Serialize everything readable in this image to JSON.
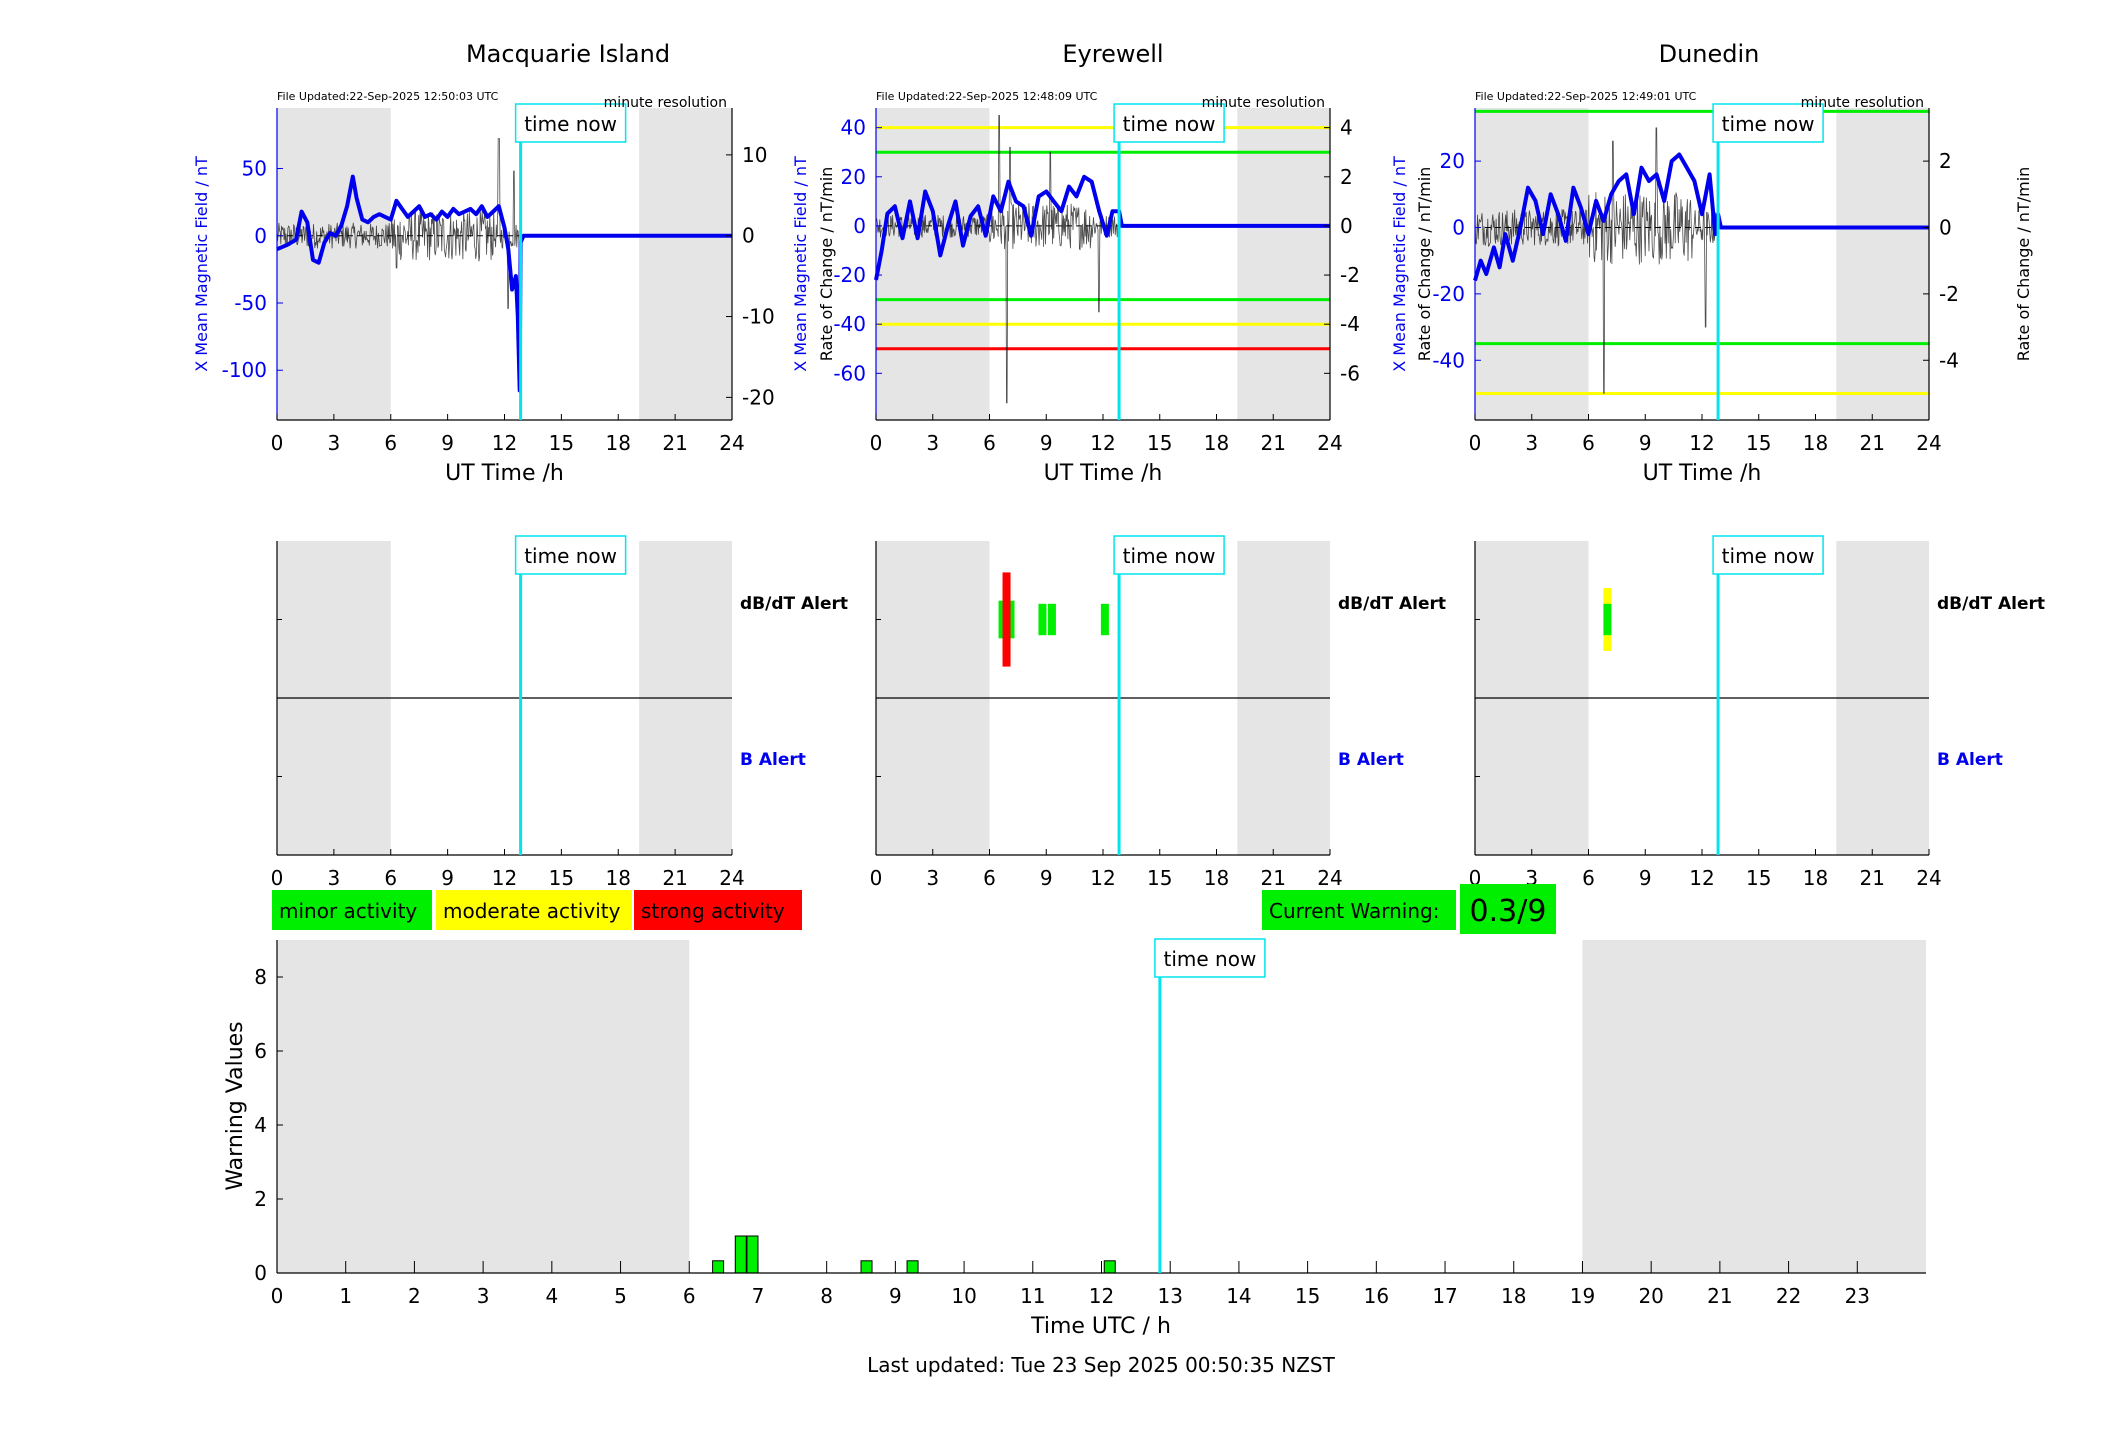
{
  "footer": "Last updated: Tue 23 Sep 2025 00:50:35 NZST",
  "legend": {
    "minor": "minor activity",
    "moderate": "moderate activity",
    "strong": "strong activity"
  },
  "current_warning": {
    "label": "Current Warning:",
    "value": "0.3/9"
  },
  "now_label": "time now",
  "colors": {
    "field": "#0000ee",
    "rate": "#000000",
    "now": "#00e5ee",
    "shade": "#e5e5e5",
    "green": "#00ee00",
    "yellow": "#ffff00",
    "red": "#ff0000"
  },
  "stations": [
    {
      "name": "Macquarie Island",
      "file_updated": "File Updated:22-Sep-2025 12:50:03 UTC",
      "resolution": "minute resolution",
      "ylabel_left": "X Mean Magnetic Field / nT",
      "ylabel_right": "Rate of Change / nT/min",
      "xlabel": "UT Time /h",
      "left_ticks": [
        "-100",
        "-50",
        "0",
        "50"
      ],
      "right_ticks": [
        "-20",
        "-10",
        "0",
        "10"
      ],
      "x_ticks": [
        "0",
        "3",
        "6",
        "9",
        "12",
        "15",
        "18",
        "21",
        "24"
      ],
      "alert_labels": {
        "dbdt": "dB/dT Alert",
        "b": "B Alert"
      }
    },
    {
      "name": "Eyrewell",
      "file_updated": "File Updated:22-Sep-2025 12:48:09 UTC",
      "resolution": "minute resolution",
      "ylabel_left": "X Mean Magnetic Field / nT",
      "ylabel_right": "Rate of Change / nT/min",
      "xlabel": "UT Time /h",
      "left_ticks": [
        "-60",
        "-40",
        "-20",
        "0",
        "20",
        "40"
      ],
      "right_ticks": [
        "-6",
        "-4",
        "-2",
        "0",
        "2",
        "4"
      ],
      "x_ticks": [
        "0",
        "3",
        "6",
        "9",
        "12",
        "15",
        "18",
        "21",
        "24"
      ],
      "alert_labels": {
        "dbdt": "dB/dT Alert",
        "b": "B Alert"
      }
    },
    {
      "name": "Dunedin",
      "file_updated": "File Updated:22-Sep-2025 12:49:01 UTC",
      "resolution": "minute resolution",
      "ylabel_left": "X Mean Magnetic Field / nT",
      "ylabel_right": "Rate of Change / nT/min",
      "xlabel": "UT Time /h",
      "left_ticks": [
        "-40",
        "-20",
        "0",
        "20"
      ],
      "right_ticks": [
        "-4",
        "-2",
        "0",
        "2"
      ],
      "x_ticks": [
        "0",
        "3",
        "6",
        "9",
        "12",
        "15",
        "18",
        "21",
        "24"
      ],
      "alert_labels": {
        "dbdt": "dB/dT Alert",
        "b": "B Alert"
      }
    }
  ],
  "chart_data": [
    {
      "type": "line",
      "title": "Macquarie Island",
      "xlabel": "UT Time /h",
      "ylabel": "X Mean Magnetic Field / nT",
      "ylabel_right": "Rate of Change / nT/min",
      "xlim": [
        0,
        24
      ],
      "ylim": [
        -137,
        95
      ],
      "ylim_right": [
        -22.8,
        15.8
      ],
      "shaded_hours": [
        [
          0,
          6
        ],
        [
          19.1,
          24
        ]
      ],
      "time_now": 12.85,
      "thresholds_field": [],
      "series": [
        {
          "name": "",
          "axis": "left",
          "color": "#0000ee",
          "x": [
            0,
            0.5,
            1,
            1.3,
            1.6,
            1.9,
            2.2,
            2.5,
            2.8,
            3.1,
            3.4,
            3.7,
            4,
            4.2,
            4.5,
            4.8,
            5.1,
            5.4,
            5.7,
            6,
            6.3,
            6.6,
            6.9,
            7.2,
            7.5,
            7.8,
            8.1,
            8.4,
            8.7,
            9,
            9.3,
            9.6,
            9.9,
            10.2,
            10.5,
            10.8,
            11.1,
            11.4,
            11.7,
            12,
            12.2,
            12.4,
            12.6,
            12.7,
            12.8,
            12.85,
            13,
            24
          ],
          "y": [
            -10,
            -7,
            -3,
            18,
            10,
            -18,
            -20,
            -5,
            2,
            0,
            8,
            22,
            44,
            28,
            12,
            10,
            14,
            16,
            14,
            12,
            26,
            20,
            14,
            18,
            22,
            14,
            16,
            12,
            18,
            14,
            20,
            16,
            18,
            20,
            16,
            22,
            14,
            18,
            22,
            6,
            -10,
            -40,
            -30,
            -60,
            -115,
            -5,
            0,
            0
          ]
        },
        {
          "name": "",
          "axis": "right",
          "color": "#000000",
          "noise": true,
          "from": 0,
          "to": 12.85,
          "amp": 2.0,
          "spikes": [
            [
              6.3,
              -4
            ],
            [
              11.7,
              12
            ],
            [
              12.2,
              -9
            ],
            [
              12.5,
              8
            ]
          ]
        }
      ]
    },
    {
      "type": "line",
      "title": "Eyrewell",
      "xlabel": "UT Time /h",
      "ylabel": "X Mean Magnetic Field / nT",
      "ylabel_right": "Rate of Change / nT/min",
      "xlim": [
        0,
        24
      ],
      "ylim": [
        -79,
        48
      ],
      "ylim_right": [
        -7.9,
        4.8
      ],
      "shaded_hours": [
        [
          0,
          6
        ],
        [
          19.1,
          24
        ]
      ],
      "time_now": 12.85,
      "thresholds_field": [
        {
          "value": 40,
          "color": "#ffff00"
        },
        {
          "value": 30,
          "color": "#00ee00"
        },
        {
          "value": -30,
          "color": "#00ee00"
        },
        {
          "value": -40,
          "color": "#ffff00"
        },
        {
          "value": -50,
          "color": "#ff0000"
        }
      ],
      "series": [
        {
          "name": "",
          "axis": "left",
          "color": "#0000ee",
          "x": [
            0,
            0.3,
            0.6,
            1,
            1.4,
            1.8,
            2.2,
            2.6,
            3,
            3.4,
            3.8,
            4.2,
            4.6,
            5,
            5.4,
            5.8,
            6.2,
            6.6,
            7,
            7.4,
            7.8,
            8.2,
            8.6,
            9,
            9.4,
            9.8,
            10.2,
            10.6,
            11,
            11.4,
            11.8,
            12.2,
            12.5,
            12.85,
            13,
            24
          ],
          "y": [
            -22,
            -10,
            5,
            8,
            -5,
            10,
            -5,
            14,
            6,
            -12,
            0,
            10,
            -8,
            4,
            8,
            -4,
            12,
            6,
            18,
            10,
            8,
            -4,
            12,
            14,
            10,
            6,
            16,
            12,
            20,
            18,
            6,
            -4,
            6,
            6,
            0,
            0
          ]
        },
        {
          "name": "",
          "axis": "right",
          "color": "#000000",
          "noise": true,
          "from": 0,
          "to": 12.85,
          "amp": 0.6,
          "spikes": [
            [
              6.5,
              4.5
            ],
            [
              6.9,
              -7.2
            ],
            [
              7.1,
              3.2
            ],
            [
              9.2,
              3.0
            ],
            [
              11.8,
              -3.5
            ]
          ]
        }
      ]
    },
    {
      "type": "line",
      "title": "Dunedin",
      "xlabel": "UT Time /h",
      "ylabel": "X Mean Magnetic Field / nT",
      "ylabel_right": "Rate of Change / nT/min",
      "xlim": [
        0,
        24
      ],
      "ylim": [
        -58,
        36
      ],
      "ylim_right": [
        -5.8,
        3.6
      ],
      "shaded_hours": [
        [
          0,
          6
        ],
        [
          19.1,
          24
        ]
      ],
      "time_now": 12.85,
      "thresholds_field": [
        {
          "value": 35,
          "color": "#00ee00"
        },
        {
          "value": -35,
          "color": "#00ee00"
        },
        {
          "value": -50,
          "color": "#ffff00"
        }
      ],
      "series": [
        {
          "name": "",
          "axis": "left",
          "color": "#0000ee",
          "x": [
            0,
            0.3,
            0.6,
            1,
            1.3,
            1.6,
            2,
            2.4,
            2.8,
            3.2,
            3.6,
            4,
            4.4,
            4.8,
            5.2,
            5.6,
            6,
            6.4,
            6.8,
            7.2,
            7.6,
            8,
            8.4,
            8.8,
            9.2,
            9.6,
            10,
            10.4,
            10.8,
            11.2,
            11.6,
            12,
            12.4,
            12.7,
            12.85,
            13,
            24
          ],
          "y": [
            -16,
            -10,
            -14,
            -6,
            -12,
            -2,
            -10,
            0,
            12,
            8,
            -2,
            10,
            4,
            -4,
            12,
            6,
            -2,
            8,
            2,
            10,
            14,
            16,
            4,
            18,
            14,
            16,
            8,
            20,
            22,
            18,
            14,
            4,
            16,
            -2,
            4,
            0,
            0
          ]
        },
        {
          "name": "",
          "axis": "right",
          "color": "#000000",
          "noise": true,
          "from": 0,
          "to": 12.85,
          "amp": 0.7,
          "spikes": [
            [
              6.8,
              -5.0
            ],
            [
              7.3,
              2.6
            ],
            [
              9.6,
              3.0
            ],
            [
              12.2,
              -3.0
            ]
          ]
        }
      ]
    },
    {
      "type": "bar",
      "title": "",
      "xlabel": "Time UTC / h",
      "ylabel": "Warning Values",
      "xlim": [
        0,
        24
      ],
      "ylim": [
        0,
        9
      ],
      "x_ticks": [
        "0",
        "1",
        "2",
        "3",
        "4",
        "5",
        "6",
        "7",
        "8",
        "9",
        "10",
        "11",
        "12",
        "13",
        "14",
        "15",
        "16",
        "17",
        "18",
        "19",
        "20",
        "21",
        "22",
        "23"
      ],
      "y_ticks": [
        "0",
        "2",
        "4",
        "6",
        "8"
      ],
      "shaded_hours": [
        [
          0,
          6
        ],
        [
          19,
          24
        ]
      ],
      "time_now": 12.85,
      "x": [
        6.42,
        6.75,
        6.92,
        8.58,
        9.25,
        12.12
      ],
      "values": [
        0.33,
        1,
        1,
        0.33,
        0.33,
        0.33
      ],
      "color": "#00ee00"
    }
  ],
  "alert_data": [
    {
      "dbdt": [],
      "b": []
    },
    {
      "dbdt": [
        {
          "x": 6.9,
          "level": "yellow",
          "span": 0.22
        },
        {
          "x": 6.9,
          "level": "green",
          "span": 0.12
        },
        {
          "x": 6.9,
          "level": "red",
          "span": 0.3
        },
        {
          "x": 8.8,
          "level": "green",
          "span": 0.1
        },
        {
          "x": 9.3,
          "level": "green",
          "span": 0.1
        },
        {
          "x": 12.1,
          "level": "green",
          "span": 0.1
        }
      ],
      "b": []
    },
    {
      "dbdt": [
        {
          "x": 7.0,
          "level": "yellow",
          "span": 0.2
        },
        {
          "x": 7.0,
          "level": "green",
          "span": 0.1
        }
      ],
      "b": []
    }
  ]
}
